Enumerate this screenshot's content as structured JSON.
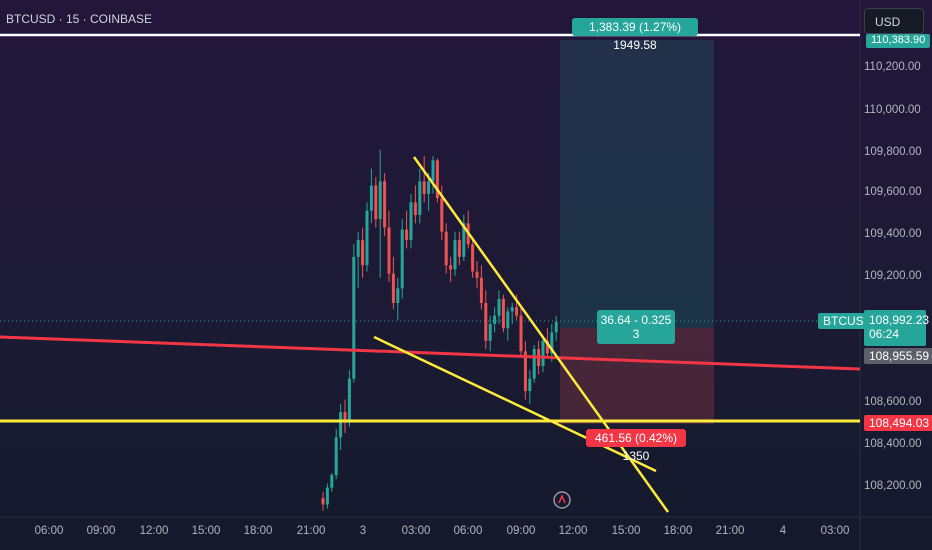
{
  "header": {
    "symbol": "BTCUSD · 15 · COINBASE",
    "currency": "USD"
  },
  "price_axis": {
    "labels": [
      "110,200.00",
      "110,000.00",
      "109,800.00",
      "109,600.00",
      "109,400.00",
      "109,200.00",
      "108,600.00",
      "108,400.00",
      "108,200.00"
    ]
  },
  "time_axis": {
    "labels": [
      "06:00",
      "09:00",
      "12:00",
      "15:00",
      "18:00",
      "21:00",
      "3",
      "03:00",
      "06:00",
      "09:00",
      "12:00",
      "15:00",
      "18:00",
      "21:00",
      "4",
      "03:00"
    ]
  },
  "tags": {
    "symbol": "BTCUSD",
    "last_price": "108,992.23",
    "countdown": "06:24",
    "red_line_price": "108,955.59",
    "support_price": "108,494.03",
    "top_partial": "110,383.90"
  },
  "position": {
    "target": "1,383.39 (1.27%) 1949.58",
    "middle_line1": "36.64 - 0.325",
    "middle_line2": "3",
    "stop": "461.56 (0.42%) 1350"
  },
  "colors": {
    "up": "#26a69a",
    "down": "#ef5350",
    "trendline": "#ffeb3b",
    "red_line": "#f23645",
    "white_line": "#ffffff"
  },
  "candles": [
    {
      "o": 108150,
      "h": 108180,
      "l": 108090,
      "c": 108120
    },
    {
      "o": 108120,
      "h": 108220,
      "l": 108100,
      "c": 108200
    },
    {
      "o": 108200,
      "h": 108270,
      "l": 108180,
      "c": 108260
    },
    {
      "o": 108260,
      "h": 108480,
      "l": 108240,
      "c": 108440
    },
    {
      "o": 108440,
      "h": 108600,
      "l": 108380,
      "c": 108560
    },
    {
      "o": 108560,
      "h": 108620,
      "l": 108460,
      "c": 108510
    },
    {
      "o": 108510,
      "h": 108760,
      "l": 108490,
      "c": 108720
    },
    {
      "o": 108720,
      "h": 109360,
      "l": 108700,
      "c": 109300
    },
    {
      "o": 109300,
      "h": 109420,
      "l": 109150,
      "c": 109380
    },
    {
      "o": 109380,
      "h": 109440,
      "l": 109200,
      "c": 109260
    },
    {
      "o": 109260,
      "h": 109560,
      "l": 109230,
      "c": 109520
    },
    {
      "o": 109520,
      "h": 109720,
      "l": 109460,
      "c": 109640
    },
    {
      "o": 109640,
      "h": 109680,
      "l": 109440,
      "c": 109480
    },
    {
      "o": 109480,
      "h": 109810,
      "l": 109200,
      "c": 109660
    },
    {
      "o": 109660,
      "h": 109700,
      "l": 109400,
      "c": 109440
    },
    {
      "o": 109440,
      "h": 109520,
      "l": 109180,
      "c": 109220
    },
    {
      "o": 109220,
      "h": 109300,
      "l": 109050,
      "c": 109080
    },
    {
      "o": 109080,
      "h": 109200,
      "l": 109000,
      "c": 109150
    },
    {
      "o": 109150,
      "h": 109480,
      "l": 109100,
      "c": 109430
    },
    {
      "o": 109430,
      "h": 109520,
      "l": 109340,
      "c": 109380
    },
    {
      "o": 109380,
      "h": 109600,
      "l": 109340,
      "c": 109560
    },
    {
      "o": 109560,
      "h": 109640,
      "l": 109460,
      "c": 109500
    },
    {
      "o": 109500,
      "h": 109720,
      "l": 109460,
      "c": 109660
    },
    {
      "o": 109660,
      "h": 109780,
      "l": 109560,
      "c": 109600
    },
    {
      "o": 109600,
      "h": 109700,
      "l": 109520,
      "c": 109660
    },
    {
      "o": 109660,
      "h": 109780,
      "l": 109600,
      "c": 109760
    },
    {
      "o": 109760,
      "h": 109770,
      "l": 109560,
      "c": 109580
    },
    {
      "o": 109580,
      "h": 109640,
      "l": 109380,
      "c": 109420
    },
    {
      "o": 109420,
      "h": 109460,
      "l": 109220,
      "c": 109260
    },
    {
      "o": 109260,
      "h": 109300,
      "l": 109180,
      "c": 109240
    },
    {
      "o": 109240,
      "h": 109420,
      "l": 109210,
      "c": 109380
    },
    {
      "o": 109380,
      "h": 109420,
      "l": 109260,
      "c": 109300
    },
    {
      "o": 109300,
      "h": 109500,
      "l": 109280,
      "c": 109460
    },
    {
      "o": 109460,
      "h": 109520,
      "l": 109340,
      "c": 109360
    },
    {
      "o": 109360,
      "h": 109380,
      "l": 109200,
      "c": 109230
    },
    {
      "o": 109230,
      "h": 109280,
      "l": 109150,
      "c": 109200
    },
    {
      "o": 109200,
      "h": 109260,
      "l": 109050,
      "c": 109080
    },
    {
      "o": 109080,
      "h": 109140,
      "l": 108860,
      "c": 108900
    },
    {
      "o": 108900,
      "h": 109020,
      "l": 108850,
      "c": 108980
    },
    {
      "o": 108980,
      "h": 109060,
      "l": 108940,
      "c": 109020
    },
    {
      "o": 109020,
      "h": 109140,
      "l": 108980,
      "c": 109100
    },
    {
      "o": 109100,
      "h": 109120,
      "l": 108940,
      "c": 108960
    },
    {
      "o": 108960,
      "h": 109060,
      "l": 108900,
      "c": 109040
    },
    {
      "o": 109040,
      "h": 109080,
      "l": 108980,
      "c": 109060
    },
    {
      "o": 109060,
      "h": 109120,
      "l": 109000,
      "c": 109020
    },
    {
      "o": 109020,
      "h": 109060,
      "l": 108820,
      "c": 108850
    },
    {
      "o": 108850,
      "h": 108900,
      "l": 108620,
      "c": 108660
    },
    {
      "o": 108660,
      "h": 108760,
      "l": 108600,
      "c": 108720
    },
    {
      "o": 108720,
      "h": 108880,
      "l": 108700,
      "c": 108860
    },
    {
      "o": 108860,
      "h": 108900,
      "l": 108740,
      "c": 108780
    },
    {
      "o": 108780,
      "h": 108920,
      "l": 108750,
      "c": 108900
    },
    {
      "o": 108900,
      "h": 108960,
      "l": 108820,
      "c": 108840
    },
    {
      "o": 108840,
      "h": 108980,
      "l": 108800,
      "c": 108940
    },
    {
      "o": 108940,
      "h": 109020,
      "l": 108900,
      "c": 108990
    }
  ]
}
